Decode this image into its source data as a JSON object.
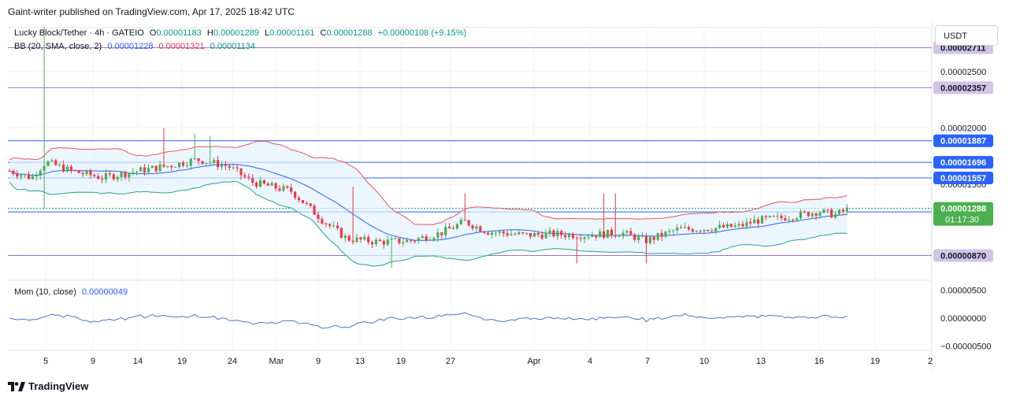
{
  "header": "Gaint-writer published on TradingView.com, Apr 17, 2025 18:42 UTC",
  "legend": {
    "symbol": "Lucky Block/Tether · 4h · GATEIO",
    "o_label": "O",
    "o": "0.00001183",
    "h_label": "H",
    "h": "0.00001289",
    "l_label": "L",
    "l": "0.00001161",
    "c_label": "C",
    "c": "0.00001288",
    "change": "+0.00000108 (+9.15%)",
    "bb_label": "BB (20, SMA, close, 2)",
    "bb_basis": "0.00001228",
    "bb_upper": "0.00001321",
    "bb_lower": "0.00001134",
    "mom_label": "Mom (10, close)",
    "mom_value": "0.00000049"
  },
  "currency": "USDT",
  "footer": "TradingView",
  "colors": {
    "up": "#4caf50",
    "down": "#f23645",
    "upper_band": "#e8545f",
    "basis": "#2962ff",
    "lower_band": "#27a38a",
    "band_fill": "#e3f2fd",
    "momentum": "#4a74c9",
    "hline_blue": "#2962ff",
    "hline_purple": "#9575cd",
    "tag_blue": "#2962ff",
    "tag_purple": "#d1c4e9"
  },
  "chart_data": {
    "type": "candlestick",
    "price_axis": {
      "ticks": [
        "0.00002500",
        "0.00002000",
        "0.00001500"
      ],
      "ylim": [
        6.5e-06,
        2.89e-05
      ]
    },
    "time_axis": [
      "5",
      "9",
      "14",
      "19",
      "24",
      "Mar",
      "9",
      "13",
      "19",
      "27",
      "Apr",
      "4",
      "7",
      "10",
      "13",
      "16",
      "19",
      "2"
    ],
    "horizontal_levels": [
      {
        "value": "0.00002711",
        "color": "purple"
      },
      {
        "value": "0.00002357",
        "color": "purple"
      },
      {
        "value": "0.00001887",
        "color": "blue"
      },
      {
        "value": "0.00001696",
        "color": "blue"
      },
      {
        "value": "0.00001557",
        "color": "blue"
      },
      {
        "value": "0.00001256",
        "color": "blue"
      },
      {
        "value": "0.00000870",
        "color": "purple"
      }
    ],
    "last_price": {
      "value": "0.00001288",
      "countdown": "01:17:30"
    },
    "momentum_axis": {
      "ticks": [
        "0.00000500",
        "0.00000000",
        "−0.00000500"
      ],
      "ylim": [
        -5.5e-06,
        6.5e-06
      ]
    }
  }
}
